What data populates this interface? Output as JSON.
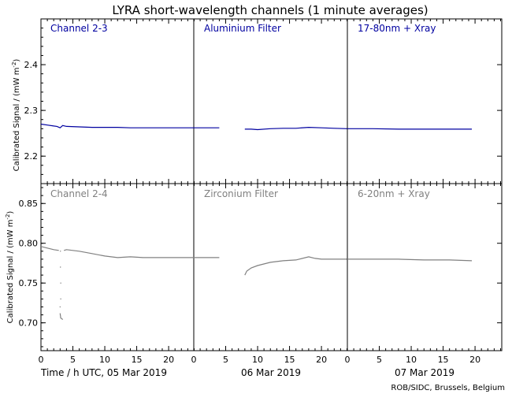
{
  "chart_data": {
    "type": "line",
    "title": "LYRA short-wavelength channels (1 minute averages)",
    "xlabel": "Time / h UTC, 05 Mar 2019",
    "day_labels": [
      "06 Mar 2019",
      "07 Mar 2019"
    ],
    "credit": "ROB/SIDC, Brussels, Belgium",
    "x_ticks": [
      "0",
      "5",
      "10",
      "15",
      "20"
    ],
    "xlim": [
      0,
      24
    ],
    "colors": {
      "top": "#0000a0",
      "bottom": "#808080",
      "frame": "#000000"
    },
    "top": {
      "ylabel": "Calibrated Signal / (mW m",
      "ylabel_sup": "-2",
      "ylabel_end": ")",
      "ylim": [
        2.14,
        2.5
      ],
      "y_ticks": [
        "2.2",
        "2.3",
        "2.4"
      ],
      "panels": [
        {
          "label": "Channel 2-3",
          "series": [
            [
              0,
              2.27
            ],
            [
              1,
              2.268
            ],
            [
              2,
              2.266
            ],
            [
              2.5,
              2.265
            ],
            [
              3,
              2.262
            ],
            [
              3.4,
              2.267
            ],
            [
              4,
              2.265
            ],
            [
              6,
              2.264
            ],
            [
              8,
              2.263
            ],
            [
              10,
              2.263
            ],
            [
              12,
              2.263
            ],
            [
              14,
              2.262
            ],
            [
              16,
              2.262
            ],
            [
              18,
              2.262
            ],
            [
              20,
              2.262
            ],
            [
              22,
              2.262
            ],
            [
              24,
              2.262
            ]
          ]
        },
        {
          "label": "Aluminium Filter",
          "series": [
            [
              0,
              2.262
            ],
            [
              2,
              2.262
            ],
            [
              4,
              2.262
            ]
          ],
          "series2": [
            [
              8,
              2.259
            ],
            [
              9,
              2.259
            ],
            [
              10,
              2.258
            ],
            [
              12,
              2.26
            ],
            [
              14,
              2.261
            ],
            [
              16,
              2.261
            ],
            [
              18,
              2.263
            ],
            [
              20,
              2.262
            ],
            [
              22,
              2.261
            ],
            [
              24,
              2.26
            ]
          ]
        },
        {
          "label": "17-80nm + Xray",
          "series": [
            [
              0,
              2.26
            ],
            [
              4,
              2.26
            ],
            [
              8,
              2.259
            ],
            [
              12,
              2.259
            ],
            [
              16,
              2.259
            ],
            [
              19.5,
              2.259
            ]
          ]
        }
      ]
    },
    "bottom": {
      "ylabel": "Calibrated Signal / (mW m",
      "ylabel_sup": "-2",
      "ylabel_end": ")",
      "ylim": [
        0.665,
        0.875
      ],
      "y_ticks": [
        "0.70",
        "0.75",
        "0.80",
        "0.85"
      ],
      "panels": [
        {
          "label": "Channel 2-4",
          "series": [
            [
              0,
              0.796
            ],
            [
              1,
              0.794
            ],
            [
              2,
              0.792
            ],
            [
              2.8,
              0.791
            ]
          ],
          "dip": [
            [
              3.0,
              0.712
            ],
            [
              3.1,
              0.706
            ],
            [
              3.3,
              0.705
            ],
            [
              3.4,
              0.704
            ]
          ],
          "series2": [
            [
              3.6,
              0.791
            ],
            [
              4,
              0.792
            ],
            [
              6,
              0.79
            ],
            [
              8,
              0.787
            ],
            [
              10,
              0.784
            ],
            [
              12,
              0.782
            ],
            [
              14,
              0.783
            ],
            [
              16,
              0.782
            ],
            [
              18,
              0.782
            ],
            [
              20,
              0.782
            ],
            [
              22,
              0.782
            ],
            [
              24,
              0.782
            ]
          ]
        },
        {
          "label": "Zirconium Filter",
          "series": [
            [
              0,
              0.782
            ],
            [
              2,
              0.782
            ],
            [
              4,
              0.782
            ]
          ],
          "series2": [
            [
              8,
              0.76
            ],
            [
              8.3,
              0.765
            ],
            [
              9,
              0.769
            ],
            [
              10,
              0.772
            ],
            [
              12,
              0.776
            ],
            [
              14,
              0.778
            ],
            [
              16,
              0.779
            ],
            [
              18,
              0.783
            ],
            [
              19,
              0.781
            ],
            [
              20,
              0.78
            ],
            [
              22,
              0.78
            ],
            [
              24,
              0.78
            ]
          ]
        },
        {
          "label": "6-20nm + Xray",
          "series": [
            [
              0,
              0.78
            ],
            [
              4,
              0.78
            ],
            [
              8,
              0.78
            ],
            [
              12,
              0.779
            ],
            [
              16,
              0.779
            ],
            [
              19.5,
              0.778
            ]
          ]
        }
      ]
    }
  }
}
